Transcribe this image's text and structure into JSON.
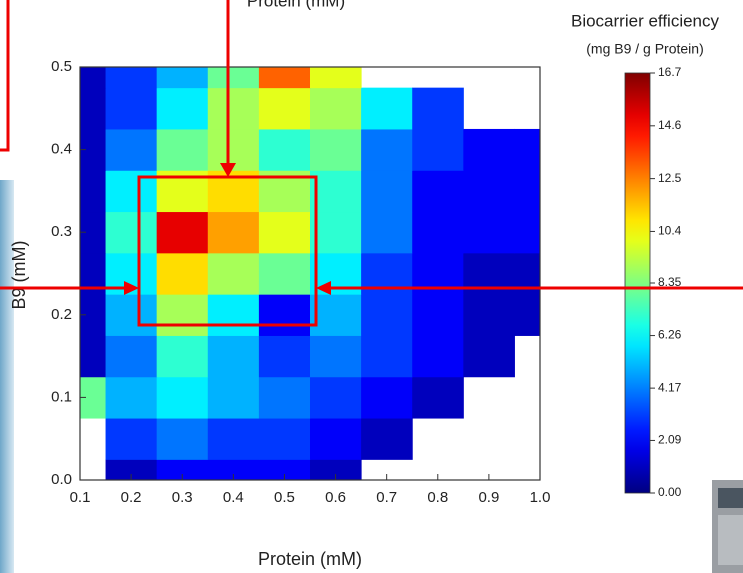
{
  "chart_data": {
    "type": "contour",
    "top_label": "Protein (mM)",
    "colorbar_title": "Biocarrier efficiency",
    "colorbar_subtitle": "(mg B9 / g Protein)",
    "x_label": "Protein (mM)",
    "y_label": "B9 (mM)",
    "x": [
      0.1,
      0.2,
      0.3,
      0.4,
      0.5,
      0.6,
      0.7,
      0.8,
      0.9,
      1.0
    ],
    "y": [
      0,
      0.05,
      0.1,
      0.15,
      0.2,
      0.25,
      0.3,
      0.35,
      0.4,
      0.45,
      0.5
    ],
    "z": [
      [
        null,
        1,
        2,
        2,
        2,
        1,
        null,
        null,
        null,
        null
      ],
      [
        null,
        3,
        4,
        3,
        3,
        2,
        1,
        null,
        null,
        null
      ],
      [
        8,
        5,
        6,
        5,
        4,
        3,
        2,
        1,
        null,
        null
      ],
      [
        1,
        4,
        7,
        5,
        3,
        4,
        3,
        2,
        1,
        null
      ],
      [
        1,
        5,
        9,
        6,
        2,
        5,
        3,
        2,
        1,
        1
      ],
      [
        1,
        6,
        11,
        9,
        8,
        6,
        3,
        2,
        1,
        1
      ],
      [
        1,
        7,
        15,
        12,
        10,
        7,
        4,
        2,
        2,
        2
      ],
      [
        1,
        6,
        10,
        11,
        9,
        7,
        4,
        2,
        2,
        2
      ],
      [
        1,
        4,
        8,
        9,
        7,
        8,
        4,
        3,
        2,
        2
      ],
      [
        1,
        3,
        6,
        9,
        10,
        9,
        6,
        3,
        null,
        null
      ],
      [
        1,
        3,
        5,
        8,
        13,
        10,
        null,
        null,
        null,
        null
      ]
    ],
    "xlim": [
      0.1,
      1.0
    ],
    "ylim": [
      0,
      0.5
    ],
    "zlim": [
      0,
      16.7
    ],
    "xticks": [
      0.1,
      0.2,
      0.3,
      0.4,
      0.5,
      0.6,
      0.7,
      0.8,
      0.9,
      {
        "value": 1.0,
        "label": "1.0"
      }
    ],
    "yticks": [
      {
        "value": 0,
        "label": "0.0"
      },
      0.1,
      0.2,
      0.3,
      0.4,
      0.5
    ],
    "zticks": [
      {
        "value": 0,
        "label": "0.00"
      },
      2.09,
      4.17,
      6.26,
      8.35,
      10.4,
      12.5,
      14.6,
      16.7
    ]
  }
}
